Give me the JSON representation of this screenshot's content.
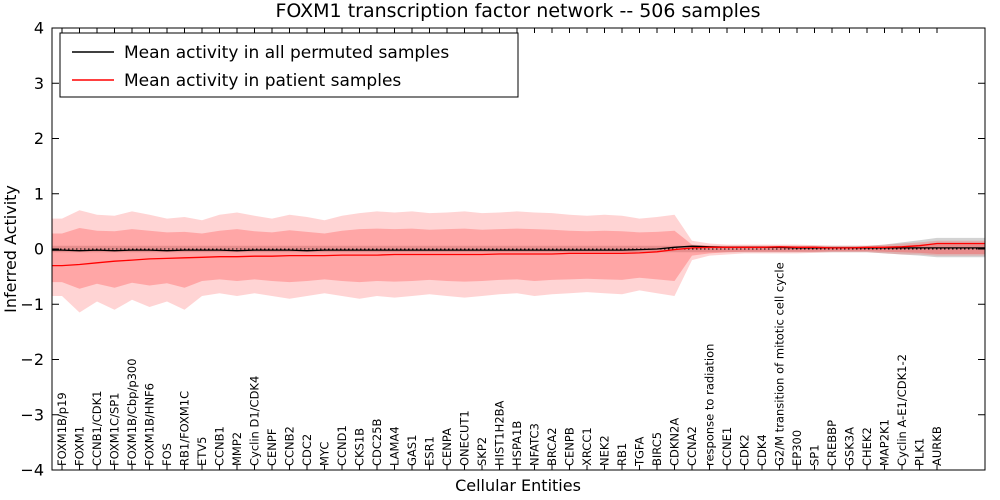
{
  "title": "FOXM1 transcription factor network -- 506 samples",
  "axes": {
    "x_label": "Cellular Entities",
    "y_label": "Inferred Activity",
    "y_ticks": [
      -4,
      -3,
      -2,
      -1,
      0,
      1,
      2,
      3,
      4
    ]
  },
  "legend": {
    "items": [
      {
        "label": "Mean activity in all permuted samples",
        "color": "#000000"
      },
      {
        "label": "Mean activity in patient samples",
        "color": "#ff0000"
      }
    ]
  },
  "chart_data": {
    "type": "line",
    "title": "FOXM1 transcription factor network -- 506 samples",
    "xlabel": "Cellular Entities",
    "ylabel": "Inferred Activity",
    "ylim": [
      -4,
      4
    ],
    "grid": false,
    "legend_position": "upper-left",
    "zero_line": true,
    "categories": [
      "FOXM1B/p19",
      "FOXM1",
      "CCNB1/CDK1",
      "FOXM1C/SP1",
      "FOXM1B/Cbp/p300",
      "FOXM1B/HNF6",
      "FOS",
      "RB1/FOXM1C",
      "ETV5",
      "CCNB1",
      "MMP2",
      "Cyclin D1/CDK4",
      "CENPF",
      "CCNB2",
      "CDC2",
      "MYC",
      "CCND1",
      "CKS1B",
      "CDC25B",
      "LAMA4",
      "GAS1",
      "ESR1",
      "CENPA",
      "ONECUT1",
      "SKP2",
      "HIST1H2BA",
      "HSPA1B",
      "NFATC3",
      "BRCA2",
      "CENPB",
      "XRCC1",
      "NEK2",
      "RB1",
      "TGFA",
      "BIRC5",
      "CDKN2A",
      "CCNA2",
      "response to radiation",
      "CCNE1",
      "CDK2",
      "CDK4",
      "G2/M transition of mitotic cell cycle",
      "EP300",
      "SP1",
      "CREBBP",
      "GSK3A",
      "CHEK2",
      "MAP2K1",
      "Cyclin A-E1/CDK1-2",
      "PLK1",
      "AURKB"
    ],
    "series": [
      {
        "name": "mean-permuted",
        "label": "Mean activity in all permuted samples",
        "color": "#000000",
        "values": [
          -0.02,
          -0.03,
          -0.02,
          -0.03,
          -0.02,
          -0.02,
          -0.03,
          -0.02,
          -0.02,
          -0.02,
          -0.03,
          -0.02,
          -0.02,
          -0.02,
          -0.03,
          -0.02,
          -0.02,
          -0.02,
          -0.02,
          -0.02,
          -0.02,
          -0.02,
          -0.02,
          -0.02,
          -0.02,
          -0.02,
          -0.02,
          -0.02,
          -0.02,
          -0.02,
          -0.02,
          -0.02,
          -0.02,
          -0.01,
          0.0,
          0.03,
          0.05,
          0.04,
          0.03,
          0.03,
          0.03,
          0.03,
          0.02,
          0.02,
          0.02,
          0.02,
          0.02,
          0.02,
          0.02,
          0.02,
          0.02
        ]
      },
      {
        "name": "mean-patient",
        "label": "Mean activity in patient samples",
        "color": "#ff0000",
        "values": [
          -0.3,
          -0.28,
          -0.25,
          -0.22,
          -0.2,
          -0.18,
          -0.17,
          -0.16,
          -0.15,
          -0.14,
          -0.14,
          -0.13,
          -0.13,
          -0.12,
          -0.12,
          -0.12,
          -0.11,
          -0.11,
          -0.11,
          -0.1,
          -0.1,
          -0.1,
          -0.1,
          -0.1,
          -0.1,
          -0.09,
          -0.09,
          -0.09,
          -0.09,
          -0.08,
          -0.08,
          -0.08,
          -0.08,
          -0.07,
          -0.05,
          -0.01,
          0.02,
          0.03,
          0.03,
          0.03,
          0.03,
          0.04,
          0.03,
          0.03,
          0.02,
          0.02,
          0.03,
          0.03,
          0.04,
          0.06,
          0.1
        ]
      }
    ],
    "bands": [
      {
        "name": "permuted-range",
        "color": "rgba(80,80,80,0.25)",
        "upper": [
          0.06,
          0.06,
          0.06,
          0.06,
          0.06,
          0.06,
          0.06,
          0.06,
          0.06,
          0.06,
          0.06,
          0.06,
          0.06,
          0.06,
          0.06,
          0.06,
          0.06,
          0.06,
          0.06,
          0.06,
          0.06,
          0.06,
          0.06,
          0.06,
          0.06,
          0.06,
          0.06,
          0.06,
          0.06,
          0.06,
          0.06,
          0.06,
          0.06,
          0.06,
          0.06,
          0.06,
          0.06,
          0.06,
          0.06,
          0.06,
          0.06,
          0.06,
          0.06,
          0.06,
          0.06,
          0.06,
          0.06,
          0.08,
          0.12,
          0.16,
          0.2
        ],
        "lower": [
          -0.06,
          -0.06,
          -0.06,
          -0.06,
          -0.06,
          -0.06,
          -0.06,
          -0.06,
          -0.06,
          -0.06,
          -0.06,
          -0.06,
          -0.06,
          -0.06,
          -0.06,
          -0.06,
          -0.06,
          -0.06,
          -0.06,
          -0.06,
          -0.06,
          -0.06,
          -0.06,
          -0.06,
          -0.06,
          -0.06,
          -0.06,
          -0.06,
          -0.06,
          -0.06,
          -0.06,
          -0.06,
          -0.06,
          -0.06,
          -0.06,
          -0.06,
          -0.06,
          -0.06,
          -0.06,
          -0.06,
          -0.06,
          -0.06,
          -0.06,
          -0.06,
          -0.06,
          -0.06,
          -0.06,
          -0.08,
          -0.1,
          -0.12,
          -0.15
        ]
      },
      {
        "name": "patient-outer",
        "color": "rgba(255,60,60,0.22)",
        "upper": [
          0.55,
          0.7,
          0.62,
          0.6,
          0.68,
          0.62,
          0.55,
          0.58,
          0.52,
          0.62,
          0.66,
          0.6,
          0.55,
          0.62,
          0.58,
          0.52,
          0.6,
          0.65,
          0.68,
          0.66,
          0.68,
          0.65,
          0.66,
          0.68,
          0.65,
          0.66,
          0.68,
          0.66,
          0.65,
          0.62,
          0.6,
          0.62,
          0.6,
          0.55,
          0.58,
          0.62,
          0.15,
          0.1,
          0.08,
          0.08,
          0.08,
          0.08,
          0.08,
          0.07,
          0.06,
          0.06,
          0.06,
          0.08,
          0.1,
          0.12,
          0.15
        ],
        "lower": [
          -0.85,
          -1.15,
          -0.95,
          -1.1,
          -0.92,
          -1.05,
          -0.95,
          -1.1,
          -0.85,
          -0.8,
          -0.85,
          -0.8,
          -0.85,
          -0.9,
          -0.85,
          -0.8,
          -0.85,
          -0.9,
          -0.85,
          -0.88,
          -0.85,
          -0.82,
          -0.85,
          -0.88,
          -0.85,
          -0.82,
          -0.8,
          -0.85,
          -0.82,
          -0.8,
          -0.78,
          -0.8,
          -0.82,
          -0.75,
          -0.8,
          -0.85,
          -0.2,
          -0.12,
          -0.1,
          -0.08,
          -0.08,
          -0.08,
          -0.08,
          -0.07,
          -0.06,
          -0.06,
          -0.06,
          -0.08,
          -0.1,
          -0.1,
          -0.12
        ]
      },
      {
        "name": "patient-inner",
        "color": "rgba(255,60,60,0.30)",
        "upper": [
          0.28,
          0.38,
          0.33,
          0.32,
          0.36,
          0.33,
          0.3,
          0.31,
          0.28,
          0.33,
          0.36,
          0.32,
          0.3,
          0.34,
          0.31,
          0.28,
          0.33,
          0.36,
          0.37,
          0.36,
          0.37,
          0.35,
          0.36,
          0.37,
          0.35,
          0.36,
          0.37,
          0.36,
          0.35,
          0.33,
          0.32,
          0.33,
          0.32,
          0.3,
          0.31,
          0.33,
          0.08,
          0.06,
          0.05,
          0.05,
          0.05,
          0.05,
          0.05,
          0.05,
          0.04,
          0.04,
          0.04,
          0.05,
          0.06,
          0.08,
          0.1
        ],
        "lower": [
          -0.6,
          -0.72,
          -0.63,
          -0.7,
          -0.61,
          -0.66,
          -0.62,
          -0.7,
          -0.58,
          -0.55,
          -0.58,
          -0.55,
          -0.58,
          -0.6,
          -0.58,
          -0.55,
          -0.58,
          -0.6,
          -0.58,
          -0.59,
          -0.58,
          -0.56,
          -0.58,
          -0.59,
          -0.58,
          -0.56,
          -0.55,
          -0.58,
          -0.56,
          -0.55,
          -0.54,
          -0.55,
          -0.56,
          -0.52,
          -0.55,
          -0.58,
          -0.12,
          -0.08,
          -0.06,
          -0.05,
          -0.05,
          -0.05,
          -0.05,
          -0.05,
          -0.04,
          -0.04,
          -0.04,
          -0.05,
          -0.06,
          -0.07,
          -0.09
        ]
      }
    ]
  }
}
